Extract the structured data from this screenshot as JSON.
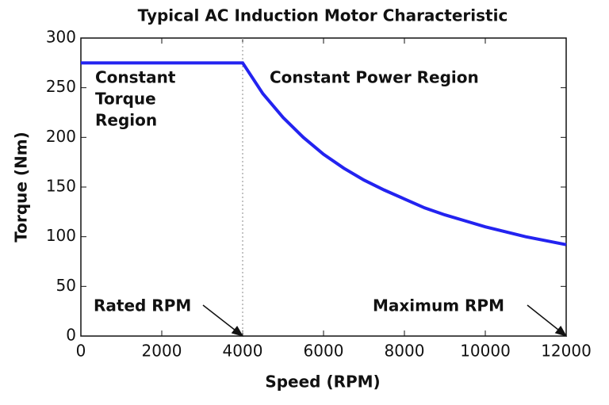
{
  "chart_data": {
    "type": "line",
    "title": "Typical AC Induction Motor Characteristic",
    "x_label": "Speed (RPM)",
    "y_label": "Torque (Nm)",
    "x": [
      0,
      4000,
      4500,
      5000,
      5500,
      6000,
      6500,
      7000,
      7500,
      8000,
      8500,
      9000,
      9500,
      10000,
      10500,
      11000,
      11500,
      12000
    ],
    "series": [
      {
        "name": "Torque",
        "color": "#2323f0",
        "values": [
          275,
          275,
          244,
          220,
          200,
          183,
          169,
          157,
          147,
          138,
          129,
          122,
          116,
          110,
          105,
          100,
          96,
          92
        ]
      }
    ],
    "xlim": [
      0,
      12000
    ],
    "xticks": [
      0,
      2000,
      4000,
      6000,
      8000,
      10000,
      12000
    ],
    "ylim": [
      0,
      300
    ],
    "yticks": [
      0,
      50,
      100,
      150,
      200,
      250,
      300
    ],
    "annotations": [
      {
        "lines": [
          "Constant",
          "Torque",
          "Region"
        ]
      },
      {
        "lines": [
          "Constant Power Region"
        ]
      },
      {
        "lines": [
          "Rated RPM"
        ]
      },
      {
        "lines": [
          "Maximum RPM"
        ]
      }
    ]
  }
}
